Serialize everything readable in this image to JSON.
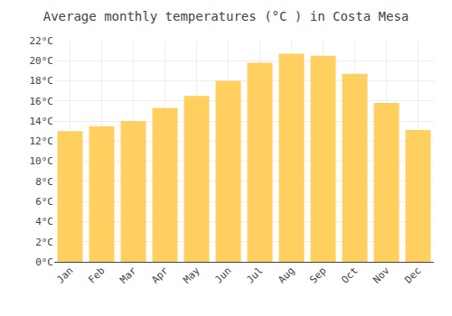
{
  "chart_data": {
    "type": "bar",
    "title": "Average monthly temperatures (°C ) in Costa Mesa",
    "categories": [
      "Jan",
      "Feb",
      "Mar",
      "Apr",
      "May",
      "Jun",
      "Jul",
      "Aug",
      "Sep",
      "Oct",
      "Nov",
      "Dec"
    ],
    "values": [
      13.0,
      13.5,
      14.0,
      15.3,
      16.5,
      18.0,
      19.8,
      20.7,
      20.5,
      18.7,
      15.8,
      13.1
    ],
    "color": "#FFD060",
    "ylim": [
      0,
      22
    ],
    "yticks": [
      {
        "value": 0,
        "label": "0°C"
      },
      {
        "value": 2,
        "label": "2°C"
      },
      {
        "value": 4,
        "label": "4°C"
      },
      {
        "value": 6,
        "label": "6°C"
      },
      {
        "value": 8,
        "label": "8°C"
      },
      {
        "value": 10,
        "label": "10°C"
      },
      {
        "value": 12,
        "label": "12°C"
      },
      {
        "value": 14,
        "label": "14°C"
      },
      {
        "value": 16,
        "label": "16°C"
      },
      {
        "value": 18,
        "label": "18°C"
      },
      {
        "value": 20,
        "label": "20°C"
      },
      {
        "value": 22,
        "label": "22°C"
      }
    ],
    "grid": true
  }
}
